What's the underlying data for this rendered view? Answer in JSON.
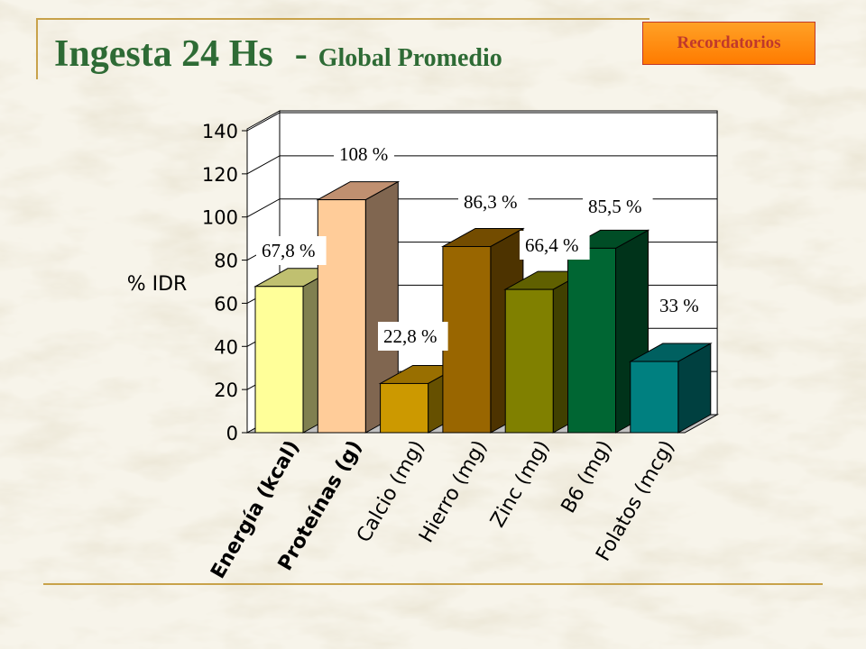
{
  "header": {
    "title": "Ingesta 24 Hs",
    "separator": "-",
    "subtitle": "Global  Promedio",
    "badge_label": "Recordatorios"
  },
  "colors": {
    "title": "#2e6b35",
    "rule": "#c8a24a",
    "badge_fill": "#ff8c1a",
    "badge_text": "#c0392b"
  },
  "chart_data": {
    "type": "bar",
    "title": "",
    "ylabel": "% IDR",
    "xlabel": "",
    "ylim": [
      0,
      140
    ],
    "yticks": [
      "0",
      "20",
      "40",
      "60",
      "80",
      "100",
      "120",
      "140"
    ],
    "grid": true,
    "categories": [
      "Energía (kcal)",
      "Proteínas (g)",
      "Calcio (mg)",
      "Hierro (mg)",
      "Zinc (mg)",
      "B6 (mg)",
      "Folatos (mcg)"
    ],
    "values": [
      67.8,
      108,
      22.8,
      86.3,
      66.4,
      85.5,
      33
    ],
    "data_labels": [
      "67,8 %",
      "108 %",
      "22,8 %",
      "86,3 %",
      "66,4 %",
      "85,5 %",
      "33 %"
    ],
    "bar_colors": [
      {
        "front": "#ffff99",
        "side": "#808050",
        "top": "#c0c070"
      },
      {
        "front": "#ffcc99",
        "side": "#806650",
        "top": "#c09070"
      },
      {
        "front": "#cc9900",
        "side": "#665000",
        "top": "#996f00"
      },
      {
        "front": "#996600",
        "side": "#4d3300",
        "top": "#734c00"
      },
      {
        "front": "#808000",
        "side": "#404000",
        "top": "#606000"
      },
      {
        "front": "#006633",
        "side": "#00331a",
        "top": "#004d26"
      },
      {
        "front": "#008080",
        "side": "#004040",
        "top": "#006060"
      }
    ]
  }
}
